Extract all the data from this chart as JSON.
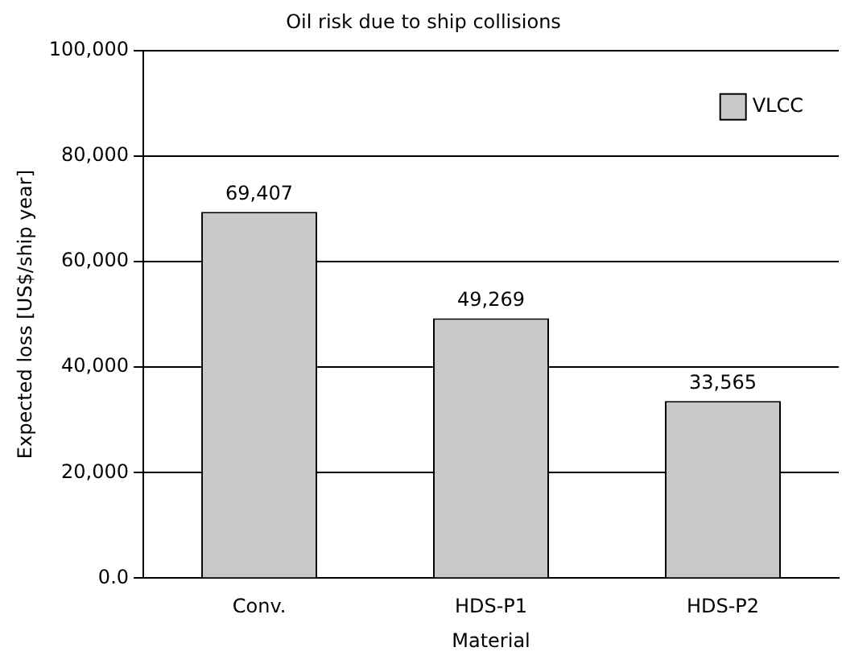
{
  "chart_data": {
    "type": "bar",
    "title": "Oil risk due to ship collisions",
    "xlabel": "Material",
    "ylabel": "Expected loss [US$/ship year]",
    "categories": [
      "Conv.",
      "HDS-P1",
      "HDS-P2"
    ],
    "series": [
      {
        "name": "VLCC",
        "color": "#c8c8c8",
        "values": [
          69407,
          49269,
          33565
        ],
        "value_labels": [
          "69,407",
          "49,269",
          "33,565"
        ]
      }
    ],
    "ylim": [
      0,
      100000
    ],
    "yticks": [
      {
        "value": 0,
        "label": "0.0"
      },
      {
        "value": 20000,
        "label": "20,000"
      },
      {
        "value": 40000,
        "label": "40,000"
      },
      {
        "value": 60000,
        "label": "60,000"
      },
      {
        "value": 80000,
        "label": "80,000"
      },
      {
        "value": 100000,
        "label": "100,000"
      }
    ],
    "grid": "y",
    "legend": "top right"
  }
}
